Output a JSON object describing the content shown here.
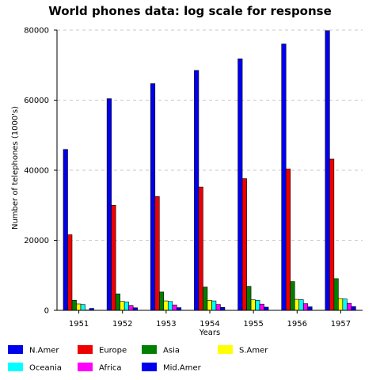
{
  "chart_data": {
    "type": "bar",
    "title": "World phones data: log scale for response",
    "xlabel": "Years",
    "ylabel": "Number of telephones (1000's)",
    "categories": [
      "1951",
      "1952",
      "1953",
      "1954",
      "1955",
      "1956",
      "1957"
    ],
    "ylim": [
      0,
      80000
    ],
    "yticks": [
      0,
      20000,
      40000,
      60000,
      80000
    ],
    "grid": true,
    "legend_position": "bottom",
    "series": [
      {
        "name": "N.Amer",
        "color": "#0000ee",
        "values": [
          45939,
          60423,
          64721,
          68484,
          71799,
          76036,
          79831
        ]
      },
      {
        "name": "Europe",
        "color": "#ee0000",
        "values": [
          21574,
          29990,
          32510,
          35218,
          37598,
          40341,
          43173
        ]
      },
      {
        "name": "Asia",
        "color": "#008000",
        "values": [
          2876,
          4708,
          5230,
          6662,
          6856,
          8220,
          9053
        ]
      },
      {
        "name": "S.Amer",
        "color": "#ffff00",
        "values": [
          1815,
          2568,
          2695,
          2845,
          3000,
          3145,
          3338
        ]
      },
      {
        "name": "Oceania",
        "color": "#00ffff",
        "values": [
          1646,
          2366,
          2526,
          2691,
          2868,
          3054,
          3224
        ]
      },
      {
        "name": "Africa",
        "color": "#ff00ff",
        "values": [
          89,
          1411,
          1546,
          1663,
          1769,
          1905,
          2005
        ]
      },
      {
        "name": "Mid.Amer",
        "color": "#0000ee",
        "values": [
          555,
          733,
          773,
          836,
          911,
          1008,
          1076
        ]
      }
    ]
  }
}
